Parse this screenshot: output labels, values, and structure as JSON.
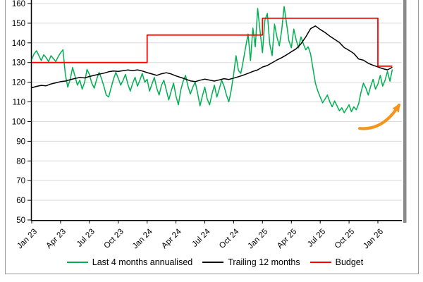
{
  "chart_data": {
    "type": "line",
    "title": "",
    "xlabel": "",
    "ylabel": "",
    "ylim": [
      50,
      160
    ],
    "y_ticks": [
      50,
      60,
      70,
      80,
      90,
      100,
      110,
      120,
      130,
      140,
      150,
      160
    ],
    "grid": "horizontal",
    "legend_position": "bottom",
    "x_tick_labels": [
      "Jan 23",
      "Apr 23",
      "Jul 23",
      "Oct 23",
      "Jan 24",
      "Apr 24",
      "Jul 24",
      "Oct 24",
      "Jan 25",
      "Apr 25",
      "Jul 25",
      "Oct 25",
      "Jan 26"
    ],
    "x_tick_months": [
      0,
      3,
      6,
      9,
      12,
      15,
      18,
      21,
      24,
      27,
      30,
      33,
      36
    ],
    "series": [
      {
        "name": "Last 4 months annualised",
        "color": "#00B050",
        "start": 0,
        "step": 0.25,
        "values": [
          131.5,
          134.5,
          136,
          133.5,
          131,
          134,
          132.5,
          130.5,
          133.5,
          132,
          130.5,
          133,
          135,
          136.5,
          124,
          117.5,
          121.5,
          127.5,
          123,
          118.5,
          121,
          116.5,
          120,
          126.5,
          124,
          119.5,
          117,
          121.5,
          125,
          122,
          118,
          113.5,
          112.5,
          117,
          121.5,
          125,
          122,
          118.5,
          121,
          124,
          119,
          115.5,
          119.5,
          122.5,
          118,
          121,
          124.5,
          120,
          121.5,
          115.5,
          119,
          122.5,
          117,
          113.5,
          118.5,
          121,
          116,
          111,
          115.5,
          119.5,
          113,
          108.5,
          116,
          120.5,
          123.5,
          118,
          114,
          117.5,
          120,
          114.5,
          108,
          113,
          117.5,
          111.5,
          108.5,
          114,
          118.5,
          112.5,
          116.5,
          121,
          118,
          113.5,
          110,
          116,
          124,
          133.5,
          126,
          124.5,
          131,
          138,
          144.5,
          131,
          147.5,
          138,
          157.5,
          146,
          135,
          151.5,
          155,
          139.5,
          133.5,
          149.5,
          143,
          138.5,
          146.5,
          158.5,
          150,
          141,
          137.5,
          147,
          141.5,
          137.5,
          143,
          139.5,
          136.5,
          138,
          134.5,
          127,
          119.5,
          115.5,
          112.5,
          109.5,
          111.5,
          113.5,
          110,
          107.5,
          110.5,
          108,
          105.5,
          107,
          104.5,
          106.5,
          108.5,
          105,
          107.5,
          106,
          109,
          115,
          119.5,
          117,
          113.5,
          118,
          121.5,
          116.5,
          119,
          123.5,
          118,
          121,
          125.5,
          120.5,
          126.5
        ]
      },
      {
        "name": "Trailing 12 months",
        "color": "#000000",
        "start": 0,
        "step": 0.5,
        "values": [
          117.2,
          117.9,
          118.4,
          118.2,
          119.1,
          119.7,
          120.3,
          120.6,
          121.3,
          121.9,
          122.4,
          122.2,
          122.9,
          123.5,
          124.1,
          124.6,
          125.3,
          125.7,
          125.5,
          125.9,
          126.2,
          125.9,
          126.3,
          125.7,
          124.9,
          124.2,
          123.5,
          124.3,
          124.8,
          124.2,
          123.2,
          122.4,
          121.6,
          120.7,
          120.3,
          121.0,
          121.6,
          121.1,
          120.6,
          121.2,
          121.8,
          121.4,
          122.1,
          122.8,
          123.6,
          124.5,
          125.5,
          126.3,
          127.7,
          128.5,
          129.9,
          131.3,
          132.5,
          133.9,
          135.5,
          137.0,
          139.5,
          143.0,
          147.2,
          148.6,
          146.8,
          145.3,
          143.4,
          141.8,
          140.2,
          137.6,
          136.2,
          134.6,
          131.8,
          131.2,
          129.6,
          128.6,
          127.8,
          126.9,
          126.3,
          127.6
        ]
      },
      {
        "name": "Budget",
        "color": "#FF0000",
        "points": [
          [
            0,
            130
          ],
          [
            12,
            130
          ],
          [
            12,
            144
          ],
          [
            24,
            144
          ],
          [
            24,
            152.5
          ],
          [
            36,
            152.5
          ],
          [
            36,
            128.2
          ],
          [
            37.5,
            128.2
          ]
        ]
      }
    ],
    "annotation": {
      "type": "arrow",
      "meaning": "recent-upturn-highlight",
      "color": "#F7941E",
      "from": [
        34.1,
        96.5
      ],
      "to": [
        38.2,
        108.4
      ]
    }
  },
  "legend": {
    "items": [
      {
        "label": "Last 4 months annualised",
        "color": "#00B050"
      },
      {
        "label": "Trailing 12 months",
        "color": "#000000"
      },
      {
        "label": "Budget",
        "color": "#FF0000"
      }
    ]
  },
  "colors": {
    "gridline": "#D9D9D9",
    "axis": "#000000",
    "frame_border": "#9A9A9A",
    "edge_bar": "#8A8A8A"
  }
}
